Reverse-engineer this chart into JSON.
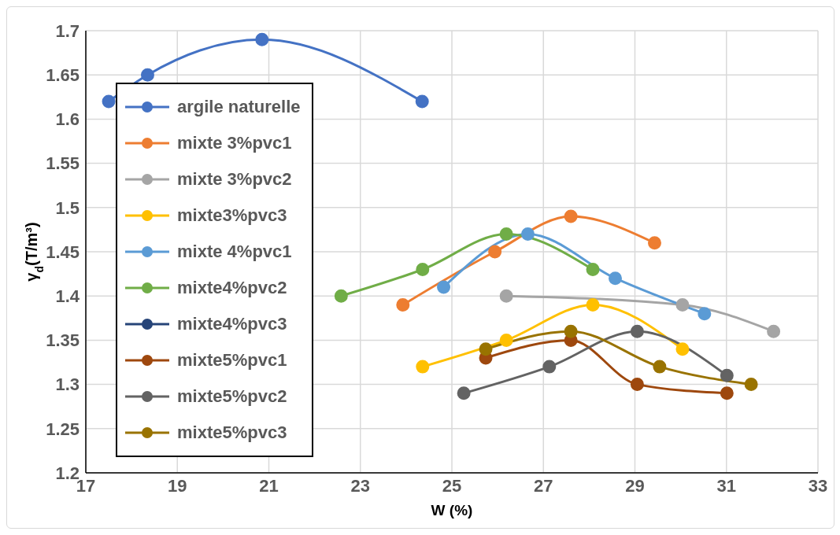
{
  "chart_data": {
    "type": "line",
    "xlabel": "W (%)",
    "ylabel": "γ$_{d}$(T/m³)",
    "xlim": [
      17,
      33
    ],
    "xticks": [
      17,
      19,
      21,
      23,
      25,
      27,
      29,
      31,
      33
    ],
    "ylim": [
      1.2,
      1.7
    ],
    "yticks": [
      1.2,
      1.25,
      1.3,
      1.35,
      1.4,
      1.45,
      1.5,
      1.55,
      1.6,
      1.65,
      1.7
    ],
    "grid": true,
    "legend": "left",
    "marker": "circle",
    "line_style": "solid",
    "series": [
      {
        "name": "argile naturelle",
        "color": "#4472c4",
        "x": [
          17.5,
          18.35,
          20.85,
          24.35
        ],
        "values": [
          1.62,
          1.65,
          1.69,
          1.62
        ]
      },
      {
        "name": "mixte 3%pvc1",
        "color": "#ed7d31",
        "x": [
          23.93,
          25.94,
          27.6,
          29.43
        ],
        "values": [
          1.39,
          1.45,
          1.49,
          1.46
        ]
      },
      {
        "name": "mixte 3%pvc2",
        "color": "#a5a5a5",
        "x": [
          26.19,
          28.08,
          30.04,
          32.03
        ],
        "values": [
          1.4,
          null,
          1.39,
          1.36
        ]
      },
      {
        "name": "mixte3%pvc3",
        "color": "#ffc000",
        "x": [
          24.36,
          26.19,
          28.08,
          30.04
        ],
        "values": [
          1.32,
          1.35,
          1.39,
          1.34
        ]
      },
      {
        "name": "mixte 4%pvc1",
        "color": "#5b9bd5",
        "x": [
          24.82,
          26.66,
          28.57,
          30.52
        ],
        "values": [
          1.41,
          1.47,
          1.42,
          1.38
        ]
      },
      {
        "name": "mixte4%pvc2",
        "color": "#70ad47",
        "x": [
          22.58,
          24.36,
          26.19,
          28.08
        ],
        "values": [
          1.4,
          1.43,
          1.47,
          1.43
        ]
      },
      {
        "name": "mixte4%pvc3",
        "color": "#264478"
      },
      {
        "name": "mixte5%pvc1",
        "color": "#9e480e",
        "x": [
          25.74,
          27.6,
          29.05,
          31.01
        ],
        "values": [
          1.33,
          1.35,
          1.3,
          1.29
        ]
      },
      {
        "name": "mixte5%pvc2",
        "color": "#636363",
        "x": [
          25.26,
          27.13,
          29.05,
          31.01
        ],
        "values": [
          1.29,
          1.32,
          1.36,
          1.31
        ]
      },
      {
        "name": "mixte5%pvc3",
        "color": "#997300",
        "x": [
          25.74,
          27.6,
          29.54,
          31.54
        ],
        "values": [
          1.34,
          1.36,
          1.32,
          1.3
        ]
      }
    ]
  }
}
